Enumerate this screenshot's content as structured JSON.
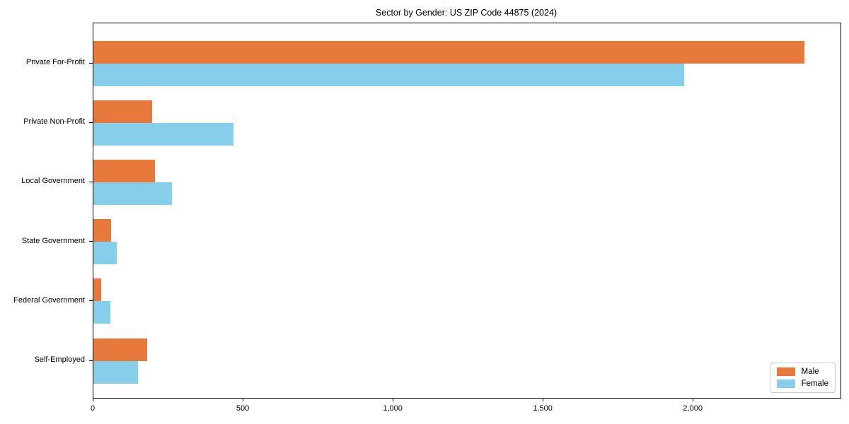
{
  "title": "Sector by Gender: US ZIP Code 44875 (2024)",
  "chart_data": {
    "type": "bar",
    "orientation": "horizontal",
    "title": "Sector by Gender: US ZIP Code 44875 (2024)",
    "xlabel": "",
    "ylabel": "",
    "categories": [
      "Private For-Profit",
      "Private Non-Profit",
      "Local Government",
      "State Government",
      "Federal Government",
      "Self-Employed"
    ],
    "series": [
      {
        "name": "Male",
        "color": "#E8793D",
        "values": [
          2370,
          196,
          205,
          60,
          25,
          180
        ]
      },
      {
        "name": "Female",
        "color": "#87CEEB",
        "values": [
          1970,
          467,
          262,
          78,
          57,
          148
        ]
      }
    ],
    "xlim": [
      0,
      2490
    ],
    "x_ticks": [
      0,
      500,
      1000,
      1500,
      2000
    ],
    "x_tick_labels": [
      "0",
      "500",
      "1,000",
      "1,500",
      "2,000"
    ],
    "grid": false,
    "legend_position": "lower right",
    "legend_labels": [
      "Male",
      "Female"
    ]
  }
}
